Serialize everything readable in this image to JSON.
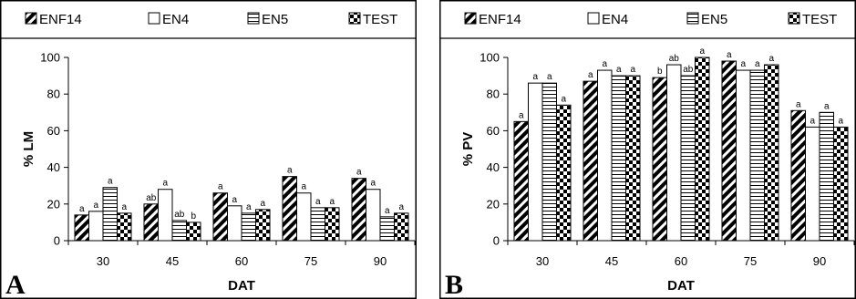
{
  "chart_data": [
    {
      "panel_label": "A",
      "type": "bar",
      "categories": [
        "30",
        "45",
        "60",
        "75",
        "90"
      ],
      "xlabel": "DAT",
      "ylabel": "% LM",
      "ylim": [
        0,
        100
      ],
      "yticks": [
        "0",
        "20",
        "40",
        "60",
        "80",
        "100"
      ],
      "grid": false,
      "legend_position": "top",
      "series": [
        {
          "name": "ENF14",
          "pattern": "diagonal",
          "values": [
            14,
            20,
            26,
            35,
            34
          ],
          "labels": [
            "a",
            "ab",
            "a",
            "a",
            "a"
          ]
        },
        {
          "name": "EN4",
          "pattern": "empty",
          "values": [
            16,
            28,
            19,
            26,
            28
          ],
          "labels": [
            "a",
            "a",
            "a",
            "a",
            "a"
          ]
        },
        {
          "name": "EN5",
          "pattern": "horizontal",
          "values": [
            29,
            11,
            15,
            18,
            13
          ],
          "labels": [
            "a",
            "ab",
            "a",
            "a",
            "a"
          ]
        },
        {
          "name": "TEST",
          "pattern": "checker",
          "values": [
            15,
            10,
            17,
            18,
            15
          ],
          "labels": [
            "a",
            "b",
            "a",
            "a",
            "a"
          ]
        }
      ]
    },
    {
      "panel_label": "B",
      "type": "bar",
      "categories": [
        "30",
        "45",
        "60",
        "75",
        "90"
      ],
      "xlabel": "DAT",
      "ylabel": "% PV",
      "ylim": [
        0,
        100
      ],
      "yticks": [
        "0",
        "20",
        "40",
        "60",
        "80",
        "100"
      ],
      "grid": false,
      "legend_position": "top",
      "series": [
        {
          "name": "ENF14",
          "pattern": "diagonal",
          "values": [
            65,
            87,
            89,
            98,
            71
          ],
          "labels": [
            "a",
            "a",
            "b",
            "a",
            "a"
          ]
        },
        {
          "name": "EN4",
          "pattern": "empty",
          "values": [
            86,
            93,
            96,
            93,
            62
          ],
          "labels": [
            "a",
            "a",
            "ab",
            "a",
            "a"
          ]
        },
        {
          "name": "EN5",
          "pattern": "horizontal",
          "values": [
            86,
            90,
            90,
            93,
            70
          ],
          "labels": [
            "a",
            "a",
            "ab",
            "a",
            "a"
          ]
        },
        {
          "name": "TEST",
          "pattern": "checker",
          "values": [
            74,
            90,
            100,
            96,
            62
          ],
          "labels": [
            "a",
            "a",
            "a",
            "a",
            "a"
          ]
        }
      ]
    }
  ]
}
